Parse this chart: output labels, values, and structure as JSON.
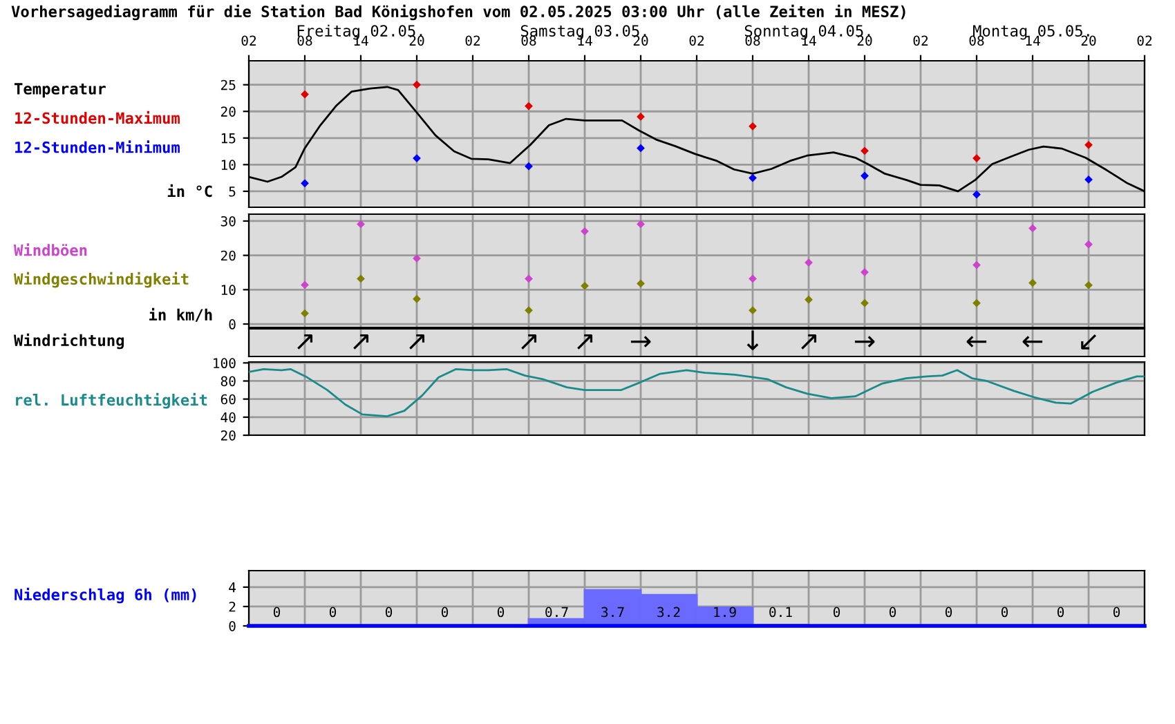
{
  "chart_data": [
    {
      "type": "line",
      "title": "Vorhersagediagramm für die Station Bad Königshofen vom 02.05.2025 03:00 Uhr (alle Zeiten in MESZ)",
      "xlim": [
        "2025-05-02T02:00",
        "2025-05-06T02:00"
      ],
      "xticks": [
        {
          "value": "2025-05-02T02:00",
          "label": "02"
        },
        {
          "value": "2025-05-02T08:00",
          "label": "08"
        },
        {
          "value": "2025-05-02T14:00",
          "label": "14"
        },
        {
          "value": "2025-05-02T20:00",
          "label": "20"
        },
        {
          "value": "2025-05-03T02:00",
          "label": "02"
        },
        {
          "value": "2025-05-03T08:00",
          "label": "08"
        },
        {
          "value": "2025-05-03T14:00",
          "label": "14"
        },
        {
          "value": "2025-05-03T20:00",
          "label": "20"
        },
        {
          "value": "2025-05-04T02:00",
          "label": "02"
        },
        {
          "value": "2025-05-04T08:00",
          "label": "08"
        },
        {
          "value": "2025-05-04T14:00",
          "label": "14"
        },
        {
          "value": "2025-05-04T20:00",
          "label": "20"
        },
        {
          "value": "2025-05-05T02:00",
          "label": "02"
        },
        {
          "value": "2025-05-05T08:00",
          "label": "08"
        },
        {
          "value": "2025-05-05T14:00",
          "label": "14"
        },
        {
          "value": "2025-05-05T20:00",
          "label": "20"
        },
        {
          "value": "2025-05-06T02:00",
          "label": "02"
        }
      ],
      "x2lim": [
        "2025-05-02T02:00",
        "2025-05-06T02:00"
      ],
      "x2ticks": [
        {
          "value": "2025-05-02T14:00",
          "label": "Freitag 02.05."
        },
        {
          "value": "2025-05-03T14:00",
          "label": "Samstag 03.05."
        },
        {
          "value": "2025-05-04T14:00",
          "label": "Sonntag 04.05."
        },
        {
          "value": "2025-05-05T14:00",
          "label": "Montag 05.05."
        }
      ],
      "ylim": [
        2,
        29.5
      ],
      "yticks": [
        5,
        10,
        15,
        20,
        25
      ],
      "grid": true,
      "annotations": [
        "in °C"
      ],
      "series": [
        {
          "name": "Temperatur",
          "color": "#000000",
          "x": [
            "2025-05-02T02:00",
            "2025-05-02T04:00",
            "2025-05-02T05:30",
            "2025-05-02T07:00",
            "2025-05-02T08:00",
            "2025-05-02T09:40",
            "2025-05-02T11:20",
            "2025-05-02T13:00",
            "2025-05-02T15:00",
            "2025-05-02T16:50",
            "2025-05-02T18:00",
            "2025-05-02T20:00",
            "2025-05-02T22:00",
            "2025-05-03T00:00",
            "2025-05-03T01:50",
            "2025-05-03T03:40",
            "2025-05-03T06:00",
            "2025-05-03T08:10",
            "2025-05-03T10:10",
            "2025-05-03T12:00",
            "2025-05-03T14:00",
            "2025-05-03T16:00",
            "2025-05-03T18:00",
            "2025-05-03T19:50",
            "2025-05-03T21:40",
            "2025-05-03T23:40",
            "2025-05-04T01:50",
            "2025-05-04T04:10",
            "2025-05-04T06:00",
            "2025-05-04T08:00",
            "2025-05-04T10:00",
            "2025-05-04T12:00",
            "2025-05-04T13:50",
            "2025-05-04T16:40",
            "2025-05-04T19:00",
            "2025-05-04T20:20",
            "2025-05-04T22:10",
            "2025-05-05T00:30",
            "2025-05-05T02:00",
            "2025-05-05T04:00",
            "2025-05-05T06:00",
            "2025-05-05T07:50",
            "2025-05-05T09:40",
            "2025-05-05T11:40",
            "2025-05-05T13:35",
            "2025-05-05T15:10",
            "2025-05-05T17:10",
            "2025-05-05T19:40",
            "2025-05-05T22:00",
            "2025-05-06T00:10",
            "2025-05-06T02:00"
          ],
          "values": [
            7.7,
            6.8,
            7.7,
            9.5,
            13.1,
            17.4,
            21,
            23.7,
            24.3,
            24.6,
            24,
            19.8,
            15.5,
            12.5,
            11.1,
            11,
            10.3,
            13.7,
            17.4,
            18.6,
            18.3,
            18.3,
            18.3,
            16.4,
            14.7,
            13.5,
            12,
            10.7,
            9.1,
            8.3,
            9.2,
            10.7,
            11.7,
            12.3,
            11.3,
            10.1,
            8.3,
            7.1,
            6.2,
            6.1,
            5,
            7.1,
            10.1,
            11.5,
            12.8,
            13.4,
            13,
            11.3,
            8.9,
            6.5,
            5
          ]
        },
        {
          "type": "scatter",
          "name": "12-Stunden-Maximum",
          "color": "#e00000",
          "marker": "diamond",
          "x": [
            "2025-05-02T08:00",
            "2025-05-02T20:00",
            "2025-05-03T08:00",
            "2025-05-03T20:00",
            "2025-05-04T08:00",
            "2025-05-04T20:00",
            "2025-05-05T08:00",
            "2025-05-05T20:00"
          ],
          "values": [
            23.2,
            25,
            21,
            19,
            17.2,
            12.6,
            11.2,
            13.7
          ]
        },
        {
          "type": "scatter",
          "name": "12-Stunden-Minimum",
          "color": "#0000ff",
          "marker": "diamond",
          "x": [
            "2025-05-02T08:00",
            "2025-05-02T20:00",
            "2025-05-03T08:00",
            "2025-05-03T20:00",
            "2025-05-04T08:00",
            "2025-05-04T20:00",
            "2025-05-05T08:00",
            "2025-05-05T20:00"
          ],
          "values": [
            6.5,
            11.2,
            9.7,
            13.1,
            7.5,
            7.9,
            4.4,
            7.2
          ]
        }
      ]
    },
    {
      "type": "scatter",
      "xlim": [
        "2025-05-02T02:00",
        "2025-05-06T02:00"
      ],
      "xticks": [
        "2025-05-02T02:00",
        "2025-05-02T08:00",
        "2025-05-02T14:00",
        "2025-05-02T20:00",
        "2025-05-03T02:00",
        "2025-05-03T08:00",
        "2025-05-03T14:00",
        "2025-05-03T20:00",
        "2025-05-04T02:00",
        "2025-05-04T08:00",
        "2025-05-04T14:00",
        "2025-05-04T20:00",
        "2025-05-05T02:00",
        "2025-05-05T08:00",
        "2025-05-05T14:00",
        "2025-05-05T20:00",
        "2025-05-06T02:00"
      ],
      "tick_labels": "y",
      "ylim": [
        -1,
        32
      ],
      "yticks": [
        0,
        10,
        20,
        30
      ],
      "grid": true,
      "marker": "diamond",
      "annotations": [
        "in km/h"
      ],
      "series": [
        {
          "name": "Windböen",
          "color": "#cc44cc",
          "x": [
            "2025-05-02T08:00",
            "2025-05-02T14:00",
            "2025-05-02T20:00",
            "2025-05-03T08:00",
            "2025-05-03T14:00",
            "2025-05-03T20:00",
            "2025-05-04T08:00",
            "2025-05-04T14:00",
            "2025-05-04T20:00",
            "2025-05-05T08:00",
            "2025-05-05T14:00",
            "2025-05-05T20:00"
          ],
          "values": [
            11.4,
            29.1,
            19.1,
            13.2,
            27,
            29.1,
            13.2,
            17.9,
            15.1,
            17.2,
            27.9,
            23.2
          ]
        },
        {
          "name": "Windgeschwindigkeit",
          "color": "#808000",
          "x": [
            "2025-05-02T08:00",
            "2025-05-02T14:00",
            "2025-05-02T20:00",
            "2025-05-03T08:00",
            "2025-05-03T14:00",
            "2025-05-03T20:00",
            "2025-05-04T08:00",
            "2025-05-04T14:00",
            "2025-05-04T20:00",
            "2025-05-05T08:00",
            "2025-05-05T14:00",
            "2025-05-05T20:00"
          ],
          "values": [
            3.1,
            13.2,
            7.3,
            4,
            11.1,
            11.8,
            4,
            7.1,
            6.1,
            6.1,
            12,
            11.3
          ]
        }
      ]
    },
    {
      "type": "other",
      "ylabel": "Windrichtung",
      "annotations": [
        "↗",
        "↗",
        "↗",
        "↗",
        "↗",
        "→",
        "↓",
        "↗",
        "→",
        "←",
        "←",
        "↙"
      ]
    },
    {
      "type": "line",
      "xlim": [
        "2025-05-02T02:00",
        "2025-05-06T02:00"
      ],
      "xticks": [
        "2025-05-02T02:00",
        "2025-05-02T08:00",
        "2025-05-02T14:00",
        "2025-05-02T20:00",
        "2025-05-03T02:00",
        "2025-05-03T08:00",
        "2025-05-03T14:00",
        "2025-05-03T20:00",
        "2025-05-04T02:00",
        "2025-05-04T08:00",
        "2025-05-04T14:00",
        "2025-05-04T20:00",
        "2025-05-05T02:00",
        "2025-05-05T08:00",
        "2025-05-05T14:00",
        "2025-05-05T20:00",
        "2025-05-06T02:00"
      ],
      "tick_labels": "y",
      "ylim": [
        20,
        101
      ],
      "yticks": [
        20,
        40,
        60,
        80,
        100
      ],
      "grid": true,
      "series": [
        {
          "name": "rel. Luftfeuchtigkeit",
          "color": "#1a8a8a",
          "x": [
            "2025-05-02T02:00",
            "2025-05-02T03:35",
            "2025-05-02T05:30",
            "2025-05-02T06:30",
            "2025-05-02T08:05",
            "2025-05-02T10:25",
            "2025-05-02T12:20",
            "2025-05-02T14:10",
            "2025-05-02T16:50",
            "2025-05-02T18:40",
            "2025-05-02T20:35",
            "2025-05-02T22:20",
            "2025-05-03T00:10",
            "2025-05-03T02:05",
            "2025-05-03T03:40",
            "2025-05-03T05:40",
            "2025-05-03T07:35",
            "2025-05-03T09:30",
            "2025-05-03T12:05",
            "2025-05-03T14:00",
            "2025-05-03T17:55",
            "2025-05-03T19:50",
            "2025-05-03T22:05",
            "2025-05-04T00:55",
            "2025-05-04T02:55",
            "2025-05-04T06:05",
            "2025-05-04T09:35",
            "2025-05-04T11:35",
            "2025-05-04T13:50",
            "2025-05-04T16:25",
            "2025-05-04T19:00",
            "2025-05-04T21:50",
            "2025-05-05T00:25",
            "2025-05-05T02:40",
            "2025-05-05T04:20",
            "2025-05-05T05:55",
            "2025-05-05T07:30",
            "2025-05-05T09:05",
            "2025-05-05T12:00",
            "2025-05-05T14:10",
            "2025-05-05T16:30",
            "2025-05-05T18:05",
            "2025-05-05T20:25",
            "2025-05-05T22:55",
            "2025-05-06T01:10",
            "2025-05-06T02:00"
          ],
          "values": [
            90,
            93,
            92,
            93,
            85,
            70,
            54,
            43,
            41,
            47,
            64,
            84,
            93,
            92,
            92,
            93,
            86,
            82,
            73,
            70,
            70,
            78,
            88,
            92,
            89,
            87,
            82,
            73,
            66,
            61,
            63,
            77,
            83,
            85,
            86,
            92,
            83,
            80,
            69,
            62,
            56,
            55,
            68,
            78,
            85,
            85
          ]
        }
      ]
    },
    {
      "type": "histogram",
      "ylabel": "Niederschlag 6h (mm)",
      "xlim": [
        "2025-05-02T02:00",
        "2025-05-06T02:00"
      ],
      "xticks": [
        "2025-05-02T02:00",
        "2025-05-02T08:00",
        "2025-05-02T14:00",
        "2025-05-02T20:00",
        "2025-05-03T02:00",
        "2025-05-03T08:00",
        "2025-05-03T14:00",
        "2025-05-03T20:00",
        "2025-05-04T02:00",
        "2025-05-04T08:00",
        "2025-05-04T14:00",
        "2025-05-04T20:00",
        "2025-05-05T02:00",
        "2025-05-05T08:00",
        "2025-05-05T14:00",
        "2025-05-05T20:00",
        "2025-05-06T02:00"
      ],
      "tick_labels": "y",
      "ylim": [
        0,
        5.7
      ],
      "yticks": [
        0,
        2,
        4
      ],
      "grid": true,
      "data_labels": true,
      "color": "#6a6aff",
      "bins": [
        "2025-05-02T02:00",
        "2025-05-02T08:00",
        "2025-05-02T14:00",
        "2025-05-02T20:00",
        "2025-05-03T02:00",
        "2025-05-03T08:00",
        "2025-05-03T14:00",
        "2025-05-03T20:00",
        "2025-05-04T02:00",
        "2025-05-04T08:00",
        "2025-05-04T14:00",
        "2025-05-04T20:00",
        "2025-05-05T02:00",
        "2025-05-05T08:00",
        "2025-05-05T14:00",
        "2025-05-05T20:00",
        "2025-05-06T02:00"
      ],
      "values": [
        0,
        0,
        0,
        0,
        0,
        0.7,
        3.7,
        3.2,
        1.9,
        0.1,
        0,
        0,
        0,
        0,
        0,
        0
      ]
    }
  ]
}
